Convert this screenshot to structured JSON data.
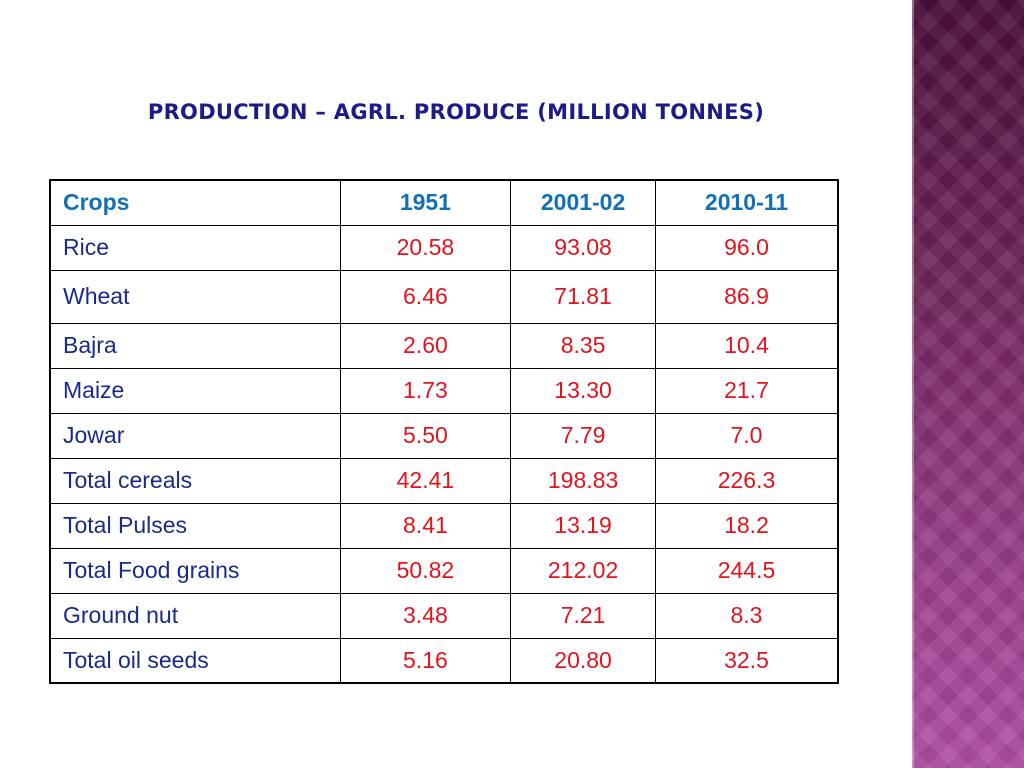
{
  "slide": {
    "title": "PRODUCTION – AGRL. PRODUCE (MILLION TONNES)"
  },
  "colors": {
    "title": "#1f1a8a",
    "header_text": "#1170b8",
    "crop_text": "#1a2a8a",
    "value_text": "#e0141e",
    "side_bar_top": "#4a0f3a",
    "side_bar_bottom": "#b04ea3"
  },
  "table": {
    "headers": [
      "Crops",
      "1951",
      "2001-02",
      "2010-11"
    ],
    "rows": [
      {
        "crop": "Rice",
        "values": [
          "20.58",
          "93.08",
          "96.0"
        ]
      },
      {
        "crop": "Wheat",
        "values": [
          "6.46",
          "71.81",
          "86.9"
        ]
      },
      {
        "crop": "Bajra",
        "values": [
          "2.60",
          "8.35",
          "10.4"
        ]
      },
      {
        "crop": "Maize",
        "values": [
          "1.73",
          "13.30",
          "21.7"
        ]
      },
      {
        "crop": "Jowar",
        "values": [
          "5.50",
          "7.79",
          "7.0"
        ]
      },
      {
        "crop": "Total cereals",
        "values": [
          "42.41",
          "198.83",
          "226.3"
        ]
      },
      {
        "crop": "Total Pulses",
        "values": [
          "8.41",
          "13.19",
          "18.2"
        ]
      },
      {
        "crop": "Total Food grains",
        "values": [
          "50.82",
          "212.02",
          "244.5"
        ]
      },
      {
        "crop": "Ground nut",
        "values": [
          "3.48",
          "7.21",
          "8.3"
        ]
      },
      {
        "crop": "Total oil seeds",
        "values": [
          "5.16",
          "20.80",
          "32.5"
        ]
      }
    ]
  }
}
